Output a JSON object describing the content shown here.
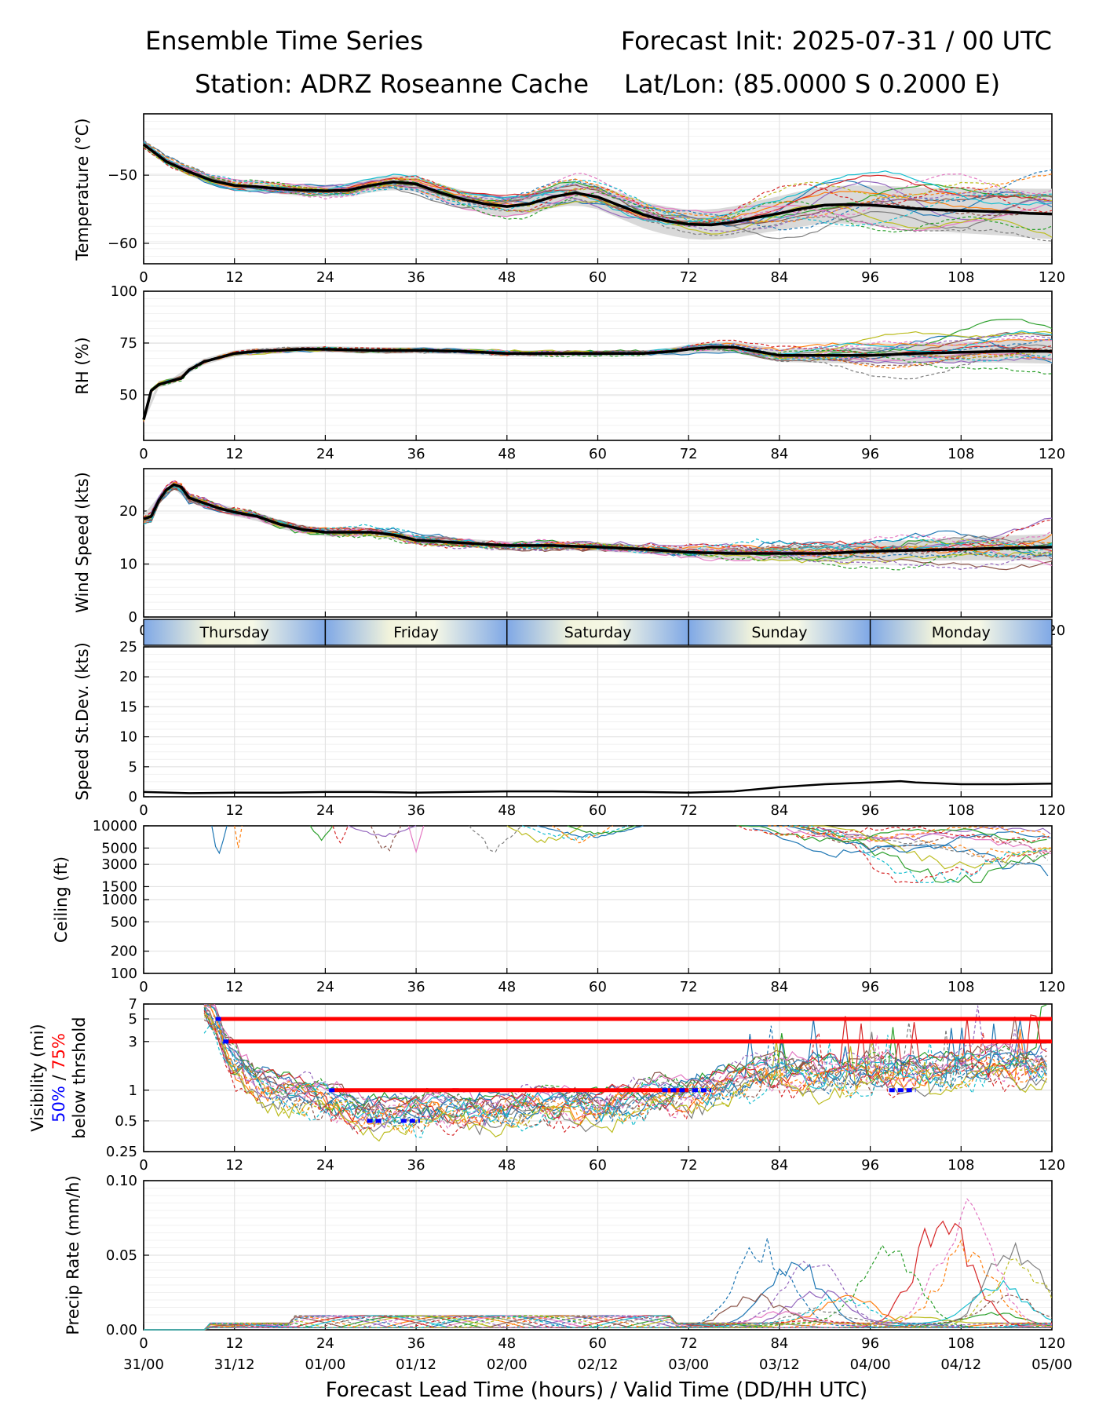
{
  "header": {
    "title": "Ensemble Time Series",
    "init": "Forecast Init: 2025-07-31 / 00 UTC",
    "station": "Station: ADRZ Roseanne Cache",
    "latlon": "Lat/Lon: (85.0000 S 0.2000 E)"
  },
  "x_axis": {
    "label": "Forecast Lead Time (hours) / Valid Time (DD/HH UTC)",
    "range": [
      0,
      120
    ],
    "ticks": [
      0,
      12,
      24,
      36,
      48,
      60,
      72,
      84,
      96,
      108,
      120
    ],
    "valid_times": [
      "31/00",
      "31/12",
      "01/00",
      "01/12",
      "02/00",
      "02/12",
      "03/00",
      "03/12",
      "04/00",
      "04/12",
      "05/00"
    ]
  },
  "day_bar": [
    "Thursday",
    "Friday",
    "Saturday",
    "Sunday",
    "Monday"
  ],
  "colors": {
    "mean": "#000000",
    "spread_fill": "#d9d9d9",
    "threshold_75": "#ff0000",
    "threshold_50": "#0000ff",
    "members": [
      "#1f77b4",
      "#ff7f0e",
      "#2ca02c",
      "#d62728",
      "#9467bd",
      "#8c564b",
      "#e377c2",
      "#7f7f7f",
      "#bcbd22",
      "#17becf"
    ]
  },
  "chart_data": [
    {
      "type": "line",
      "ylabel": "Temperature (°C)",
      "ylim": [
        -63,
        -41
      ],
      "yticks": [
        -50,
        -60
      ],
      "grid": true,
      "series": [
        {
          "role": "ensemble mean",
          "x": [
            0,
            3,
            6,
            9,
            12,
            15,
            18,
            21,
            24,
            27,
            30,
            33,
            36,
            39,
            42,
            45,
            48,
            51,
            54,
            57,
            60,
            63,
            66,
            69,
            72,
            75,
            78,
            81,
            84,
            87,
            90,
            93,
            96,
            99,
            102,
            105,
            108,
            111,
            114,
            117,
            120
          ],
          "y": [
            -45.5,
            -48,
            -49.5,
            -50.8,
            -51.5,
            -51.7,
            -52,
            -52.2,
            -52.3,
            -52.2,
            -51.5,
            -51,
            -51.3,
            -52.5,
            -53.5,
            -54.2,
            -54.6,
            -54.2,
            -53.2,
            -52.6,
            -53.2,
            -54.5,
            -55.8,
            -56.7,
            -57.2,
            -57.3,
            -56.9,
            -56.2,
            -55.6,
            -54.9,
            -54.4,
            -54.3,
            -54.4,
            -54.6,
            -54.9,
            -55.1,
            -55.2,
            -55.3,
            -55.4,
            -55.6,
            -55.7
          ]
        }
      ]
    },
    {
      "type": "line",
      "ylabel": "RH (%)",
      "ylim": [
        28,
        100
      ],
      "yticks": [
        50,
        75,
        100
      ],
      "grid": true,
      "series": [
        {
          "role": "ensemble mean",
          "x": [
            0,
            1,
            2,
            3,
            5,
            6,
            8,
            10,
            12,
            15,
            18,
            21,
            24,
            30,
            36,
            42,
            48,
            54,
            60,
            66,
            70,
            72,
            75,
            78,
            81,
            84,
            90,
            96,
            102,
            108,
            114,
            120
          ],
          "y": [
            38,
            52,
            55,
            56,
            58,
            62,
            66,
            68,
            70,
            71,
            71.5,
            72,
            72,
            71.5,
            71.5,
            71,
            70,
            70,
            70,
            70,
            71,
            72,
            73,
            73,
            71,
            69,
            69,
            69,
            70,
            70.5,
            71,
            71
          ]
        }
      ]
    },
    {
      "type": "line",
      "ylabel": "Wind Speed (kts)",
      "ylim": [
        0,
        28
      ],
      "yticks": [
        0,
        10,
        20
      ],
      "grid": true,
      "series": [
        {
          "role": "ensemble mean",
          "x": [
            0,
            1,
            2,
            3,
            4,
            5,
            6,
            8,
            10,
            12,
            15,
            18,
            21,
            24,
            27,
            30,
            33,
            36,
            42,
            48,
            54,
            60,
            66,
            72,
            78,
            84,
            90,
            96,
            102,
            108,
            114,
            120
          ],
          "y": [
            18.5,
            19,
            22,
            24,
            25,
            24.5,
            22.5,
            21.5,
            20.5,
            19.8,
            19,
            17.5,
            16.5,
            16,
            16,
            16,
            15.5,
            14.5,
            14,
            13.5,
            13.5,
            13.2,
            12.8,
            12.2,
            12,
            12,
            12,
            12.4,
            12.6,
            12.8,
            13,
            13.2
          ]
        }
      ]
    },
    {
      "type": "line",
      "ylabel": "Speed St.Dev. (kts)",
      "ylim": [
        0,
        25
      ],
      "yticks": [
        0,
        5,
        10,
        15,
        20,
        25
      ],
      "grid": true,
      "series": [
        {
          "role": "ensemble standard deviation",
          "x": [
            0,
            6,
            12,
            18,
            24,
            30,
            36,
            42,
            48,
            54,
            60,
            66,
            72,
            78,
            84,
            90,
            96,
            100,
            102,
            108,
            114,
            120
          ],
          "y": [
            0.8,
            0.6,
            0.7,
            0.7,
            0.8,
            0.8,
            0.7,
            0.8,
            0.9,
            0.9,
            0.8,
            0.8,
            0.7,
            0.9,
            1.6,
            2.1,
            2.4,
            2.6,
            2.4,
            2.1,
            2.1,
            2.2
          ]
        }
      ]
    },
    {
      "type": "line",
      "ylabel": "Ceiling (ft)",
      "yscale": "log",
      "ylim": [
        100,
        10000
      ],
      "yticks": [
        100,
        200,
        500,
        1000,
        1500,
        3000,
        5000,
        10000
      ],
      "grid": true
    },
    {
      "type": "line",
      "ylabel": "Visibility (mi)",
      "ylabel_line2_50": "50%",
      "ylabel_line2_sep": " / ",
      "ylabel_line2_75": "75%",
      "ylabel_line3": "below thrshold",
      "yscale": "log",
      "ylim": [
        0.25,
        7
      ],
      "yticks": [
        0.25,
        0.5,
        1,
        3,
        5,
        7
      ],
      "grid": true,
      "threshold_75_pct": [
        {
          "level": 5,
          "x_start": 10,
          "x_end": 120
        },
        {
          "level": 3,
          "x_start": 11,
          "x_end": 120
        },
        {
          "level": 1,
          "x_start": 25,
          "x_end": 72
        }
      ],
      "threshold_50_pct": [
        {
          "level": 5,
          "x_start": 9.5,
          "x_end": 10.5
        },
        {
          "level": 3,
          "x_start": 10.5,
          "x_end": 11.5
        },
        {
          "level": 1,
          "x_start": 24.5,
          "x_end": 25.5
        },
        {
          "level": 0.5,
          "x_start": 29.5,
          "x_end": 31.5
        },
        {
          "level": 0.5,
          "x_start": 34,
          "x_end": 36.5
        },
        {
          "level": 1,
          "x_start": 68.5,
          "x_end": 71.5
        },
        {
          "level": 1,
          "x_start": 72.5,
          "x_end": 75
        },
        {
          "level": 1,
          "x_start": 98.5,
          "x_end": 102
        }
      ]
    },
    {
      "type": "line",
      "ylabel": "Precip Rate (mm/h)",
      "ylim": [
        0,
        0.1
      ],
      "yticks": [
        0.0,
        0.05,
        0.1
      ],
      "ytick_labels": [
        "0.00",
        "0.05",
        "0.10"
      ],
      "grid": true
    }
  ]
}
